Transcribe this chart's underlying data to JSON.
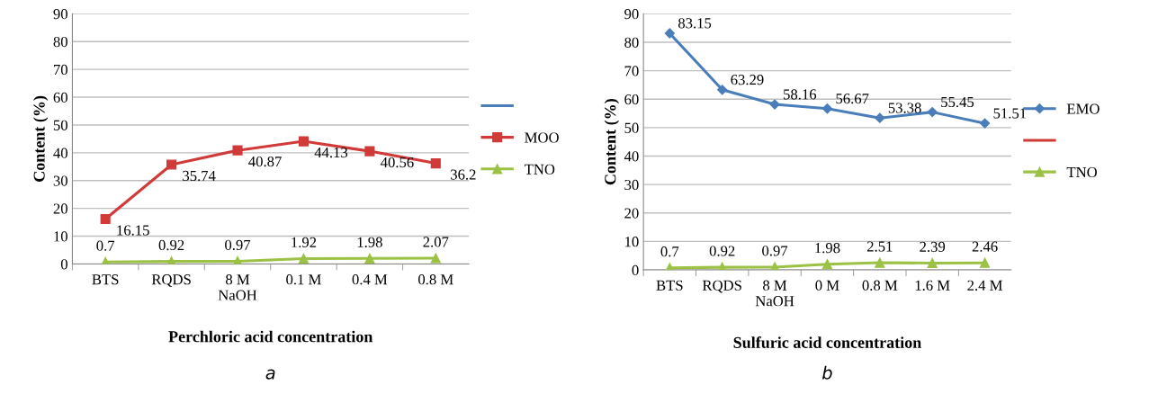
{
  "chart_data": [
    {
      "type": "line",
      "categories": [
        "BTS",
        "RQDS",
        "8 M\nNaOH",
        "0.1 M",
        "0.4 M",
        "0.8 M"
      ],
      "xlabel": "Perchloric acid concentration",
      "ylabel": "Content (%)",
      "ylim": [
        0,
        90
      ],
      "yticks": [
        0,
        10,
        20,
        30,
        40,
        50,
        60,
        70,
        80,
        90
      ],
      "grid": "y",
      "legend": "right",
      "data_labels": true,
      "annotations": [
        "a"
      ],
      "series": [
        {
          "color": "#4a7ebb",
          "values": [
            null,
            null,
            null,
            null,
            null,
            null
          ],
          "marker": "none"
        },
        {
          "name": "MOO",
          "color": "#d03a38",
          "values": [
            16.15,
            35.74,
            40.87,
            44.13,
            40.56,
            36.2
          ],
          "marker": "square"
        },
        {
          "name": "TNO",
          "color": "#9bc245",
          "values": [
            0.7,
            0.92,
            0.97,
            1.92,
            1.98,
            2.07
          ],
          "marker": "triangle"
        }
      ]
    },
    {
      "type": "line",
      "categories": [
        "BTS",
        "RQDS",
        "8 M\nNaOH",
        "0 M",
        "0.8 M",
        "1.6 M",
        "2.4 M"
      ],
      "xlabel": "Sulfuric acid concentration",
      "ylabel": "Content (%)",
      "ylim": [
        0,
        90
      ],
      "yticks": [
        0,
        10,
        20,
        30,
        40,
        50,
        60,
        70,
        80,
        90
      ],
      "grid": "y",
      "legend": "right",
      "data_labels": true,
      "annotations": [
        "b"
      ],
      "series": [
        {
          "name": "EMO",
          "color": "#4a7ebb",
          "values": [
            83.15,
            63.29,
            58.16,
            56.67,
            53.38,
            55.45,
            51.51
          ],
          "marker": "diamond"
        },
        {
          "color": "#d03a38",
          "values": [
            null,
            null,
            null,
            null,
            null,
            null,
            null
          ],
          "marker": "none"
        },
        {
          "name": "TNO",
          "color": "#9bc245",
          "values": [
            0.7,
            0.92,
            0.97,
            1.98,
            2.51,
            2.39,
            2.46
          ],
          "marker": "triangle"
        }
      ]
    }
  ]
}
